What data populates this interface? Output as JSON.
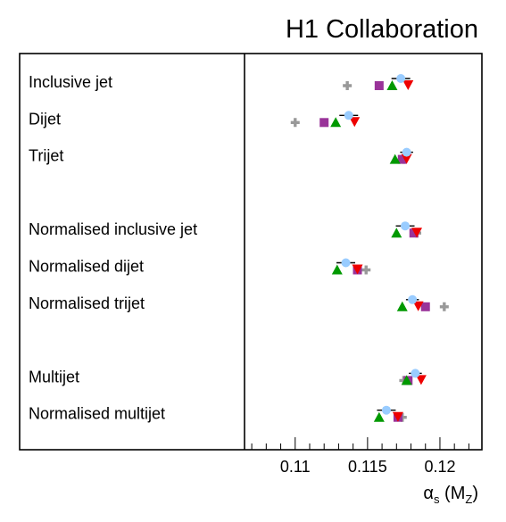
{
  "chart_data": {
    "type": "scatter",
    "title": "H1 Collaboration",
    "xlabel": {
      "main": "α",
      "sub": "s",
      "paren_open": " (M",
      "paren_sub": "Z",
      "paren_close": ")"
    },
    "xlim": [
      0.1065,
      0.1229
    ],
    "xticks": [
      "0.11",
      "0.115",
      "0.12"
    ],
    "xtick_values": [
      0.11,
      0.115,
      0.12
    ],
    "minor_tick_step": 0.001,
    "grid": false,
    "colors": {
      "circle": "#99ccff",
      "triangle_up": "#009900",
      "square": "#993399",
      "triangle_down": "#ee0000",
      "cross": "#999999"
    },
    "rows": [
      {
        "label": "Inclusive jet",
        "slot": 0,
        "circle": 0.1173,
        "err_lo": 0.1169,
        "err_hi": 0.1177,
        "cross": 0.1136,
        "square": 0.1158,
        "triangle_up": 0.1167,
        "triangle_down": 0.1178
      },
      {
        "label": "Dijet",
        "slot": 1,
        "circle": 0.1137,
        "err_lo": 0.1133,
        "err_hi": 0.1141,
        "cross": 0.11,
        "square": 0.112,
        "triangle_up": 0.1128,
        "triangle_down": 0.1141
      },
      {
        "label": "Trijet",
        "slot": 2,
        "circle": 0.1177,
        "err_lo": 0.1175,
        "err_hi": 0.1179,
        "cross": 0.1175,
        "square": 0.1174,
        "triangle_up": 0.1169,
        "triangle_down": 0.1177
      },
      {
        "label": "Normalised inclusive jet",
        "slot": 4,
        "circle": 0.1176,
        "err_lo": 0.1172,
        "err_hi": 0.118,
        "cross": 0.1184,
        "square": 0.1182,
        "triangle_up": 0.117,
        "triangle_down": 0.1184
      },
      {
        "label": "Normalised dijet",
        "slot": 5,
        "circle": 0.1135,
        "err_lo": 0.1131,
        "err_hi": 0.1139,
        "cross": 0.1149,
        "square": 0.1143,
        "triangle_up": 0.1129,
        "triangle_down": 0.1143
      },
      {
        "label": "Normalised trijet",
        "slot": 6,
        "circle": 0.1181,
        "err_lo": 0.1179,
        "err_hi": 0.1183,
        "cross": 0.1203,
        "square": 0.119,
        "triangle_up": 0.1174,
        "triangle_down": 0.1185
      },
      {
        "label": "Multijet",
        "slot": 8,
        "circle": 0.1183,
        "err_lo": 0.1181,
        "err_hi": 0.1185,
        "cross": 0.1175,
        "square": 0.1178,
        "triangle_up": 0.1177,
        "triangle_down": 0.1187
      },
      {
        "label": "Normalised multijet",
        "slot": 9,
        "circle": 0.1163,
        "err_lo": 0.1159,
        "err_hi": 0.1167,
        "cross": 0.1174,
        "square": 0.1171,
        "triangle_up": 0.1158,
        "triangle_down": 0.1171
      }
    ]
  }
}
